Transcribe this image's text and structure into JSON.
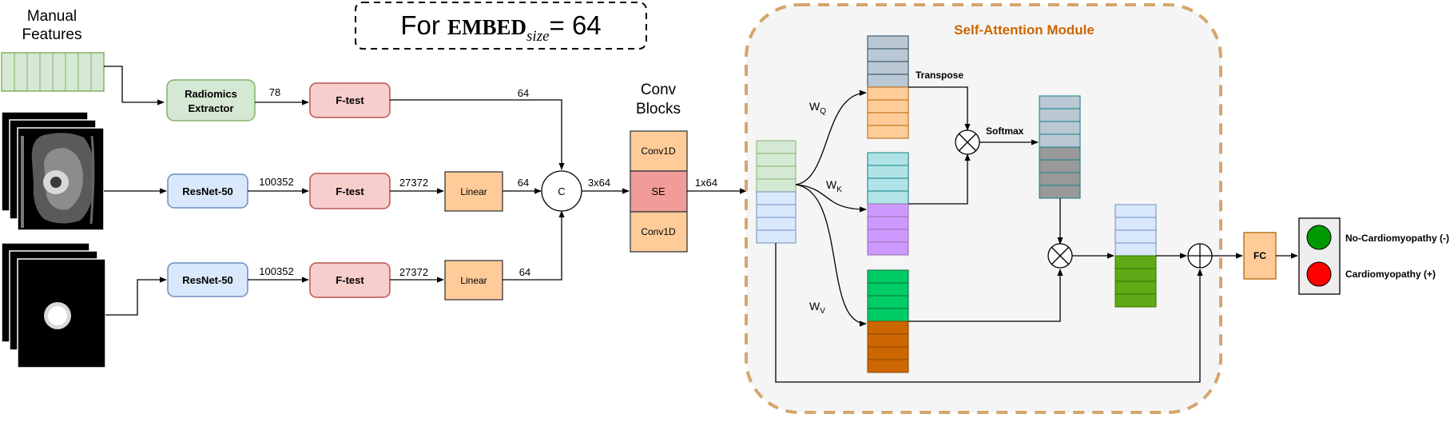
{
  "header": {
    "title_prefix": "For ",
    "title_word": "EMBED",
    "title_sub": "size",
    "title_suffix": "= 64"
  },
  "inputs": {
    "manual_features_line1": "Manual",
    "manual_features_line2": "Features"
  },
  "blocks": {
    "radiomics_line1": "Radiomics",
    "radiomics_line2": "Extractor",
    "resnet_top": "ResNet-50",
    "resnet_bottom": "ResNet-50",
    "ftest_1": "F-test",
    "ftest_2": "F-test",
    "ftest_3": "F-test",
    "linear_1": "Linear",
    "linear_2": "Linear",
    "concat": "C",
    "conv_blocks_line1": "Conv",
    "conv_blocks_line2": "Blocks",
    "conv1d_top": "Conv1D",
    "se": "SE",
    "conv1d_bottom": "Conv1D",
    "fc": "FC"
  },
  "edge_labels": {
    "radiomics_to_ftest": "78",
    "ftest1_out": "64",
    "resnet1_out": "100352",
    "ftest2_out": "27372",
    "linear1_out": "64",
    "resnet2_out": "100352",
    "ftest3_out": "27372",
    "linear2_out": "64",
    "concat_out": "3x64",
    "conv_out": "1x64"
  },
  "attention": {
    "title": "Self-Attention Module",
    "wq": "W",
    "wq_sub": "Q",
    "wk": "W",
    "wk_sub": "K",
    "wv": "W",
    "wv_sub": "V",
    "transpose": "Transpose",
    "softmax": "Softmax"
  },
  "outputs": {
    "class_negative": "No-Cardiomyopathy (-)",
    "class_positive": "Cardiomyopathy (+)"
  },
  "colors": {
    "green_fill": "#d5e8d4",
    "green_stroke": "#82b366",
    "blue_fill": "#dae8fc",
    "blue_stroke": "#6c8ebf",
    "red_fill": "#f8cecc",
    "red_stroke": "#b85450",
    "orange_fill": "#ffcc99",
    "orange_stroke": "#36393d",
    "se_fill": "#f19c99",
    "module_border": "#d6a56c",
    "module_title": "#cc6600",
    "key_fill": "#cc99ff",
    "query_fill": "#b0e3e6",
    "k_gray": "#bac8d3",
    "value_top": "#00cc66",
    "value_bottom": "#cc6600",
    "softmax_dark": "#999999",
    "result_green": "#60a917",
    "dot_green": "#009900",
    "dot_red": "#ff0000"
  }
}
